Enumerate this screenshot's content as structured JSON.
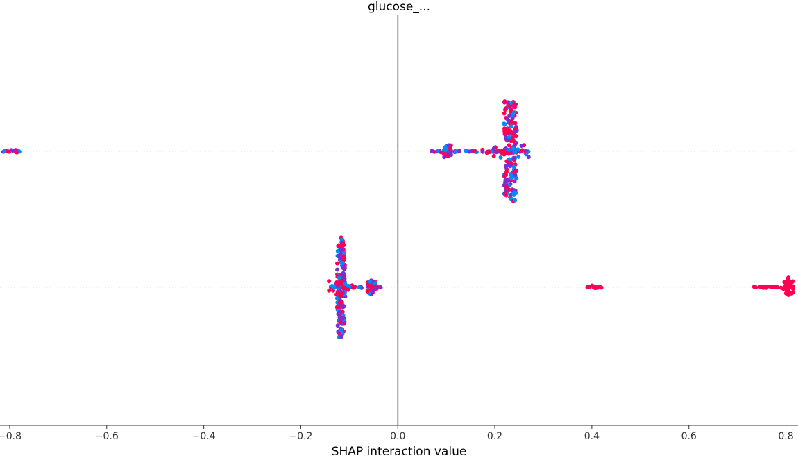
{
  "chart_data": {
    "type": "scatter",
    "subtype": "beeswarm",
    "title": "glucose_...",
    "xlabel": "SHAP interaction value",
    "ylabel": "",
    "xlim": [
      -0.82,
      0.825
    ],
    "xticks": [
      -0.8,
      -0.6,
      -0.4,
      -0.2,
      0.0,
      0.2,
      0.4,
      0.6,
      0.8
    ],
    "xtick_labels": [
      "−0.8",
      "−0.6",
      "−0.4",
      "−0.2",
      "0.0",
      "0.2",
      "0.4",
      "0.6",
      "0.8"
    ],
    "zero_line": true,
    "row_gridlines": "dotted",
    "colormap": [
      "#008bfb",
      "#7a2fd6",
      "#ff0052"
    ],
    "rows": [
      {
        "row": 1,
        "clusters": [
          {
            "x_min": -0.82,
            "x_max": -0.78,
            "center": -0.79,
            "peak": 0.0,
            "spread": 0.0,
            "color": "mixed"
          },
          {
            "x_min": 0.07,
            "x_max": 0.13,
            "center": 0.1,
            "peak": 0.1,
            "spread": 0.0,
            "color": "mixed"
          },
          {
            "x_min": 0.14,
            "x_max": 0.21,
            "center": 0.18,
            "peak": 0.0,
            "spread": 0.0,
            "color": "mixed"
          },
          {
            "x_min": 0.21,
            "x_max": 0.27,
            "center": 0.232,
            "peak": 1.0,
            "spread": 0.012,
            "color": "mixed"
          }
        ]
      },
      {
        "row": 2,
        "clusters": [
          {
            "x_min": -0.14,
            "x_max": -0.1,
            "center": -0.117,
            "peak": 1.0,
            "spread": 0.006,
            "color": "mixed"
          },
          {
            "x_min": -0.1,
            "x_max": -0.035,
            "center": -0.055,
            "peak": 0.15,
            "spread": 0.0,
            "color": "mixed"
          },
          {
            "x_min": 0.39,
            "x_max": 0.42,
            "center": 0.4,
            "peak": 0.0,
            "spread": 0.0,
            "color": "red"
          },
          {
            "x_min": 0.73,
            "x_max": 0.82,
            "center": 0.805,
            "peak": 0.2,
            "spread": 0.0,
            "color": "red"
          }
        ]
      }
    ]
  }
}
